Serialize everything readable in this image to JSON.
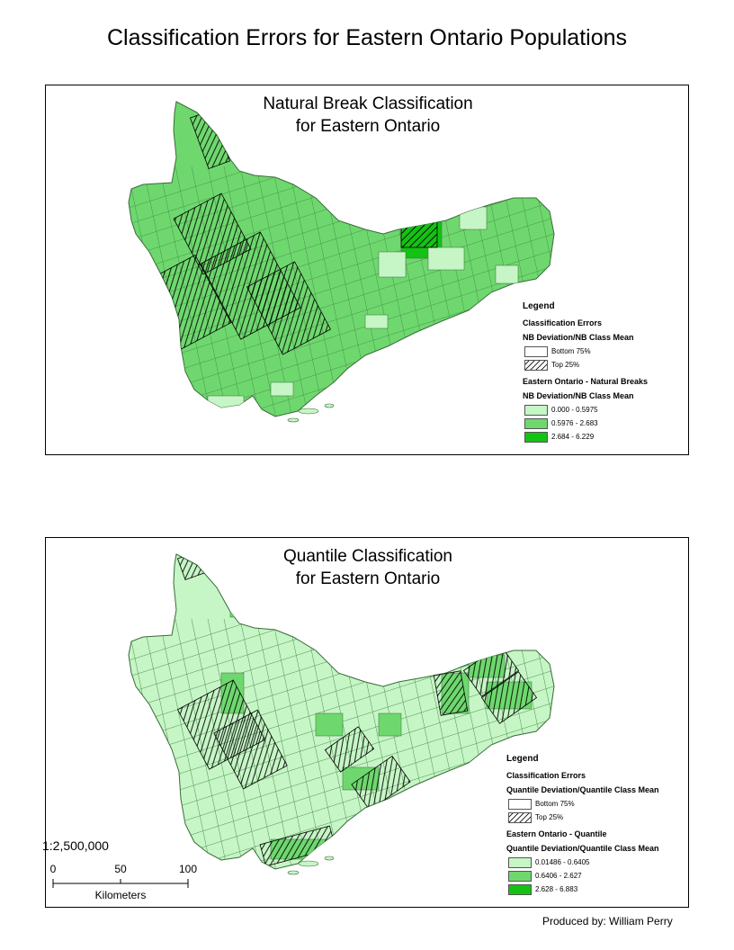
{
  "page": {
    "title": "Classification Errors for Eastern Ontario Populations",
    "credit": "Produced by: William Perry"
  },
  "colors": {
    "light": "#c6f5c6",
    "medium": "#6ed86e",
    "dark": "#14c214",
    "hatch": "#000000",
    "border": "#3a6b3a"
  },
  "panels": [
    {
      "title_line1": "Natural Break Classification",
      "title_line2": "for Eastern Ontario",
      "legend": {
        "heading": "Legend",
        "section1": "Classification Errors",
        "sub1": "NB Deviation/NB Class Mean",
        "items1": [
          {
            "label": "Bottom 75%"
          },
          {
            "label": "Top 25%"
          }
        ],
        "section2": "Eastern Ontario - Natural Breaks",
        "sub2": "NB Deviation/NB Class Mean",
        "items2": [
          {
            "label": "0.000 - 0.5975",
            "color": "#c6f5c6"
          },
          {
            "label": "0.5976 - 2.683",
            "color": "#6ed86e"
          },
          {
            "label": "2.684 - 6.229",
            "color": "#14c214"
          }
        ]
      }
    },
    {
      "title_line1": "Quantile Classification",
      "title_line2": "for Eastern Ontario",
      "legend": {
        "heading": "Legend",
        "section1": "Classification Errors",
        "sub1": "Quantile Deviation/Quantile Class Mean",
        "items1": [
          {
            "label": "Bottom 75%"
          },
          {
            "label": "Top 25%"
          }
        ],
        "section2": "Eastern Ontario - Quantile",
        "sub2": "Quantile Deviation/Quantile Class Mean",
        "items2": [
          {
            "label": "0.01486 - 0.6405",
            "color": "#c6f5c6"
          },
          {
            "label": "0.6406 - 2.627",
            "color": "#6ed86e"
          },
          {
            "label": "2.628 - 6.883",
            "color": "#14c214"
          }
        ]
      }
    }
  ],
  "scale": {
    "ratio": "1:2,500,000",
    "ticks": [
      "0",
      "50",
      "100"
    ],
    "unit": "Kilometers"
  }
}
